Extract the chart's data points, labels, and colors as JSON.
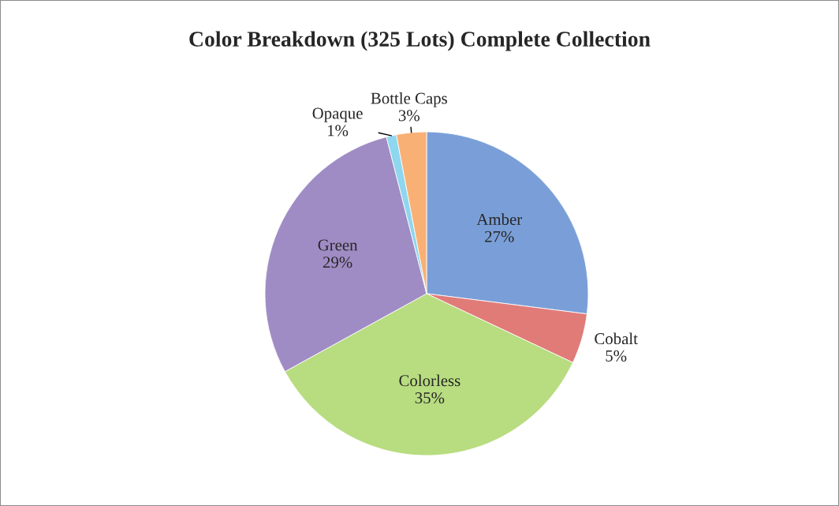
{
  "chart_data": {
    "type": "pie",
    "title": "Color Breakdown (325 Lots) Complete Collection",
    "categories": [
      "Amber",
      "Cobalt",
      "Colorless",
      "Green",
      "Opaque",
      "Bottle Caps"
    ],
    "values": [
      27,
      5,
      35,
      29,
      1,
      3
    ],
    "value_labels": [
      "27%",
      "5%",
      "35%",
      "29%",
      "1%",
      "3%"
    ],
    "colors": [
      "#7a9fd8",
      "#e07b78",
      "#b8dc80",
      "#a08cc4",
      "#8fd6ef",
      "#f9b074"
    ]
  }
}
